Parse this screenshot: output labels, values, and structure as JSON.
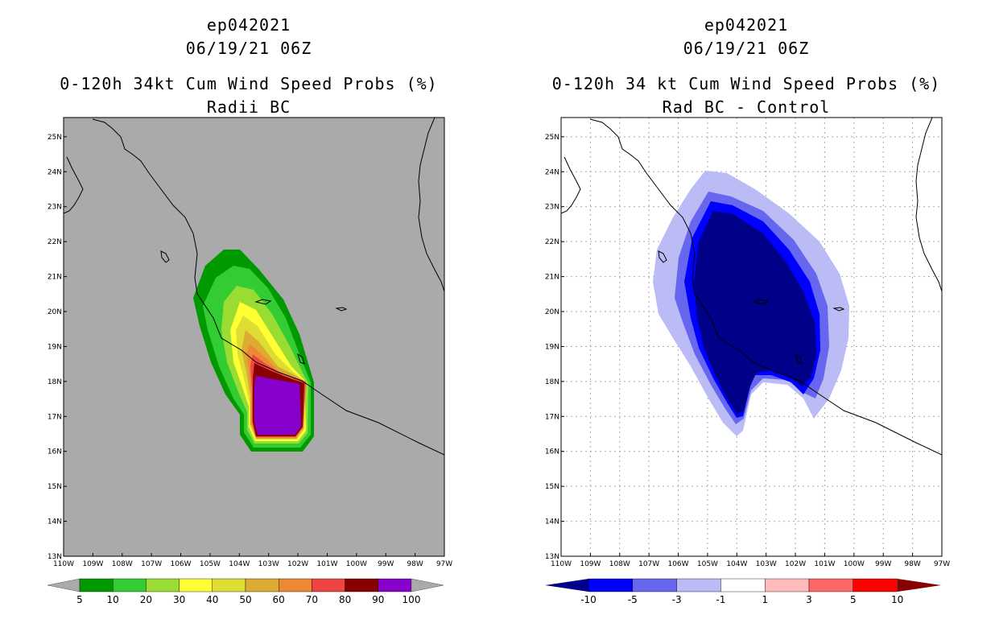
{
  "left": {
    "storm": "ep042021",
    "datetime": "06/19/21 06Z",
    "title": "0-120h 34kt Cum Wind Speed Probs (%)",
    "subtitle": "Radii BC",
    "background": "#aaaaaa",
    "colorbar": {
      "labels": [
        "5",
        "10",
        "20",
        "30",
        "40",
        "50",
        "60",
        "70",
        "80",
        "90",
        "100"
      ],
      "colors": [
        "#009900",
        "#33cc33",
        "#99dd33",
        "#ffff33",
        "#dddd33",
        "#ddaa33",
        "#ee8833",
        "#ee4444",
        "#880000",
        "#8800cc"
      ],
      "under": "#aaaaaa",
      "over": "#aaaaaa"
    }
  },
  "right": {
    "storm": "ep042021",
    "datetime": "06/19/21 06Z",
    "title": "0-120h 34 kt Cum Wind Speed Probs (%)",
    "subtitle": "Rad BC - Control",
    "background": "#ffffff",
    "colorbar": {
      "labels": [
        "-10",
        "-5",
        "-3",
        "-1",
        "1",
        "3",
        "5",
        "10"
      ],
      "colors": [
        "#0000ff",
        "#6666ee",
        "#bbbbf5",
        "#ffffff",
        "#ffbbbb",
        "#ff6666",
        "#ff0000"
      ],
      "under": "#000088",
      "over": "#880000"
    }
  },
  "axes": {
    "lon_labels": [
      "110W",
      "109W",
      "108W",
      "107W",
      "106W",
      "105W",
      "104W",
      "103W",
      "102W",
      "101W",
      "100W",
      "99W",
      "98W",
      "97W"
    ],
    "lat_labels": [
      "13N",
      "14N",
      "15N",
      "16N",
      "17N",
      "18N",
      "19N",
      "20N",
      "21N",
      "22N",
      "23N",
      "24N",
      "25N"
    ]
  }
}
